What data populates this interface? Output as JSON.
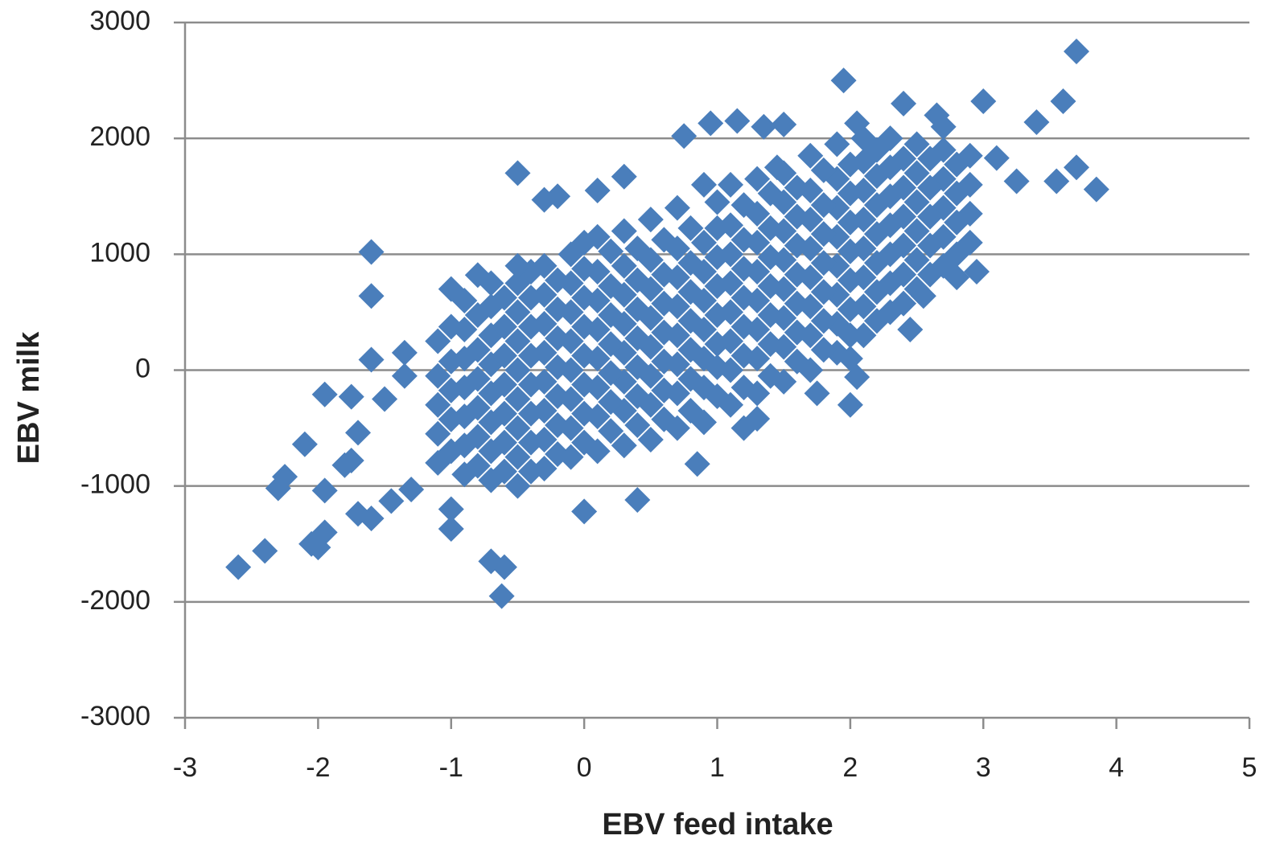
{
  "chart_data": {
    "type": "scatter",
    "x_label": "EBV feed intake",
    "y_label": "EBV milk",
    "color": "#4a7ebb",
    "marker": "diamond",
    "grid": true,
    "xlim": [
      -3,
      5
    ],
    "xticks": [
      -3,
      -2,
      -1,
      0,
      1,
      2,
      3,
      4,
      5
    ],
    "ylim": [
      -3000,
      3000
    ],
    "yticks": [
      -3000,
      -2000,
      -1000,
      0,
      1000,
      2000,
      3000
    ],
    "x": [
      -1.1,
      -1.1,
      -1.1,
      -1.1,
      -1.1,
      -0.9,
      -0.9,
      -0.9,
      -0.9,
      -0.9,
      -0.9,
      -0.9,
      -0.7,
      -0.7,
      -0.7,
      -0.7,
      -0.7,
      -0.7,
      -0.7,
      -0.7,
      -0.5,
      -0.5,
      -0.5,
      -0.5,
      -0.5,
      -0.5,
      -0.5,
      -0.5,
      -0.3,
      -0.3,
      -0.3,
      -0.3,
      -0.3,
      -0.3,
      -0.3,
      -0.3,
      -0.1,
      -0.1,
      -0.1,
      -0.1,
      -0.1,
      -0.1,
      -0.1,
      -0.1,
      0.1,
      0.1,
      0.1,
      0.1,
      0.1,
      0.1,
      0.1,
      0.1,
      0.3,
      0.3,
      0.3,
      0.3,
      0.3,
      0.3,
      0.3,
      0.3,
      0.5,
      0.5,
      0.5,
      0.5,
      0.5,
      0.5,
      0.5,
      0.5,
      0.7,
      0.7,
      0.7,
      0.7,
      0.7,
      0.7,
      0.7,
      0.7,
      0.9,
      0.9,
      0.9,
      0.9,
      0.9,
      0.9,
      0.9,
      0.9,
      1.1,
      1.1,
      1.1,
      1.1,
      1.1,
      1.1,
      1.1,
      1.1,
      1.3,
      1.3,
      1.3,
      1.3,
      1.3,
      1.3,
      1.3,
      1.3,
      1.5,
      1.5,
      1.5,
      1.5,
      1.5,
      1.5,
      1.5,
      1.5,
      1.7,
      1.7,
      1.7,
      1.7,
      1.7,
      1.7,
      1.7,
      1.7,
      1.9,
      1.9,
      1.9,
      1.9,
      1.9,
      1.9,
      1.9,
      1.9,
      2.1,
      2.1,
      2.1,
      2.1,
      2.1,
      2.1,
      2.1,
      2.1,
      2.3,
      2.3,
      2.3,
      2.3,
      2.3,
      2.3,
      2.3,
      2.5,
      2.5,
      2.5,
      2.5,
      2.5,
      2.5,
      2.7,
      2.7,
      2.7,
      2.7,
      2.7,
      2.7,
      2.9,
      2.9,
      2.9,
      2.9,
      -1.0,
      -1.0,
      -1.0,
      -1.0,
      -1.0,
      -0.8,
      -0.8,
      -0.8,
      -0.8,
      -0.8,
      -0.8,
      -0.6,
      -0.6,
      -0.6,
      -0.6,
      -0.6,
      -0.6,
      -0.6,
      -0.4,
      -0.4,
      -0.4,
      -0.4,
      -0.4,
      -0.4,
      -0.4,
      -0.4,
      -0.2,
      -0.2,
      -0.2,
      -0.2,
      -0.2,
      -0.2,
      -0.2,
      0,
      0,
      0,
      0,
      0,
      0,
      0,
      0,
      0.2,
      0.2,
      0.2,
      0.2,
      0.2,
      0.2,
      0.2,
      0.4,
      0.4,
      0.4,
      0.4,
      0.4,
      0.4,
      0.4,
      0.6,
      0.6,
      0.6,
      0.6,
      0.6,
      0.6,
      0.6,
      0.8,
      0.8,
      0.8,
      0.8,
      0.8,
      0.8,
      0.8,
      1.0,
      1.0,
      1.0,
      1.0,
      1.0,
      1.0,
      1.0,
      1.0,
      1.2,
      1.2,
      1.2,
      1.2,
      1.2,
      1.2,
      1.2,
      1.4,
      1.4,
      1.4,
      1.4,
      1.4,
      1.4,
      1.4,
      1.6,
      1.6,
      1.6,
      1.6,
      1.6,
      1.6,
      1.6,
      1.8,
      1.8,
      1.8,
      1.8,
      1.8,
      1.8,
      1.8,
      2.0,
      2.0,
      2.0,
      2.0,
      2.0,
      2.0,
      2.0,
      2.2,
      2.2,
      2.2,
      2.2,
      2.2,
      2.2,
      2.2,
      2.4,
      2.4,
      2.4,
      2.4,
      2.4,
      2.4,
      2.6,
      2.6,
      2.6,
      2.6,
      2.6,
      2.8,
      2.8,
      2.8,
      2.8,
      -2.6,
      -2.4,
      -2.3,
      -2.25,
      -2.1,
      -2.05,
      -2.0,
      -1.95,
      -1.95,
      -1.95,
      -1.8,
      -1.75,
      -1.75,
      -1.7,
      -1.6,
      -1.6,
      -1.6,
      -1.6,
      -1.7,
      -1.5,
      -1.45,
      -1.35,
      -1.35,
      -1.3,
      -1.0,
      -1.0,
      -0.7,
      -0.6,
      -0.62,
      -0.5,
      -0.3,
      -0.2,
      0.1,
      0.3,
      0.4,
      0,
      0.85,
      0.75,
      0.95,
      1.15,
      1.35,
      1.5,
      1.45,
      1.95,
      2.05,
      2.4,
      2.65,
      3.0,
      3.4,
      3.6,
      3.7,
      3.55,
      3.7,
      3.85,
      3.25,
      3.1,
      2.95,
      2.8,
      2.55,
      2.45,
      2.0,
      2.05,
      2.0,
      1.75,
      1.3,
      1.2,
      -1.0,
      -0.8,
      -0.5
    ],
    "values": [
      -800,
      -550,
      -300,
      -50,
      250,
      -900,
      -650,
      -400,
      -150,
      100,
      350,
      600,
      -950,
      -700,
      -450,
      -200,
      50,
      300,
      550,
      750,
      -1000,
      -750,
      -500,
      -250,
      0,
      250,
      500,
      750,
      -850,
      -600,
      -350,
      -100,
      150,
      400,
      650,
      900,
      -750,
      -500,
      -250,
      0,
      250,
      500,
      750,
      1000,
      -700,
      -400,
      -150,
      100,
      350,
      600,
      850,
      1150,
      -650,
      -350,
      -100,
      150,
      400,
      650,
      900,
      1200,
      -600,
      -300,
      -50,
      200,
      450,
      700,
      950,
      1300,
      -500,
      -200,
      50,
      300,
      550,
      800,
      1050,
      1400,
      -450,
      -150,
      100,
      350,
      600,
      850,
      1100,
      1600,
      -300,
      0,
      250,
      500,
      750,
      1000,
      1250,
      1600,
      -200,
      100,
      350,
      600,
      850,
      1100,
      1350,
      1650,
      -100,
      200,
      450,
      700,
      950,
      1200,
      1450,
      1700,
      0,
      300,
      550,
      800,
      1050,
      1300,
      1550,
      1850,
      150,
      400,
      650,
      900,
      1150,
      1400,
      1650,
      1950,
      300,
      550,
      800,
      1050,
      1300,
      1550,
      1800,
      2000,
      500,
      750,
      1000,
      1250,
      1500,
      1750,
      2000,
      700,
      950,
      1200,
      1450,
      1700,
      1950,
      900,
      1150,
      1400,
      1650,
      1900,
      2100,
      1100,
      1350,
      1600,
      1850,
      -700,
      -425,
      -175,
      75,
      375,
      -825,
      -575,
      -325,
      -75,
      175,
      475,
      -875,
      -625,
      -375,
      -125,
      125,
      375,
      625,
      -875,
      -625,
      -375,
      -125,
      125,
      375,
      625,
      850,
      -725,
      -475,
      -225,
      25,
      275,
      525,
      775,
      -625,
      -375,
      -125,
      125,
      375,
      625,
      875,
      1100,
      -525,
      -275,
      -25,
      225,
      475,
      725,
      1025,
      -475,
      -225,
      25,
      275,
      525,
      775,
      1050,
      -425,
      -175,
      75,
      325,
      575,
      825,
      1125,
      -350,
      -75,
      175,
      425,
      675,
      925,
      1225,
      -225,
      25,
      225,
      475,
      725,
      975,
      1225,
      1450,
      -150,
      125,
      375,
      625,
      875,
      1125,
      1425,
      -50,
      225,
      475,
      725,
      975,
      1225,
      1525,
      75,
      325,
      575,
      825,
      1075,
      1325,
      1575,
      175,
      425,
      675,
      925,
      1175,
      1425,
      1725,
      300,
      525,
      775,
      1025,
      1275,
      1525,
      1775,
      425,
      675,
      925,
      1175,
      1425,
      1675,
      1900,
      575,
      825,
      1075,
      1325,
      1575,
      1825,
      825,
      1075,
      1325,
      1575,
      1825,
      1000,
      1275,
      1525,
      1775,
      -1700,
      -1560,
      -1020,
      -920,
      -640,
      -1500,
      -1530,
      -1400,
      -1040,
      -210,
      -820,
      -780,
      -230,
      -1240,
      -1280,
      1020,
      640,
      90,
      -540,
      -250,
      -1130,
      150,
      -50,
      -1030,
      -1370,
      -1200,
      -1650,
      -1700,
      -1950,
      1700,
      1470,
      1500,
      1550,
      1670,
      -1120,
      -1220,
      -810,
      2020,
      2130,
      2150,
      2100,
      2120,
      1750,
      2500,
      2130,
      2300,
      2200,
      2320,
      2140,
      2320,
      2750,
      1630,
      1750,
      1560,
      1630,
      1830,
      850,
      800,
      640,
      350,
      -300,
      -60,
      100,
      -200,
      -420,
      -500,
      700,
      820,
      900
    ]
  }
}
